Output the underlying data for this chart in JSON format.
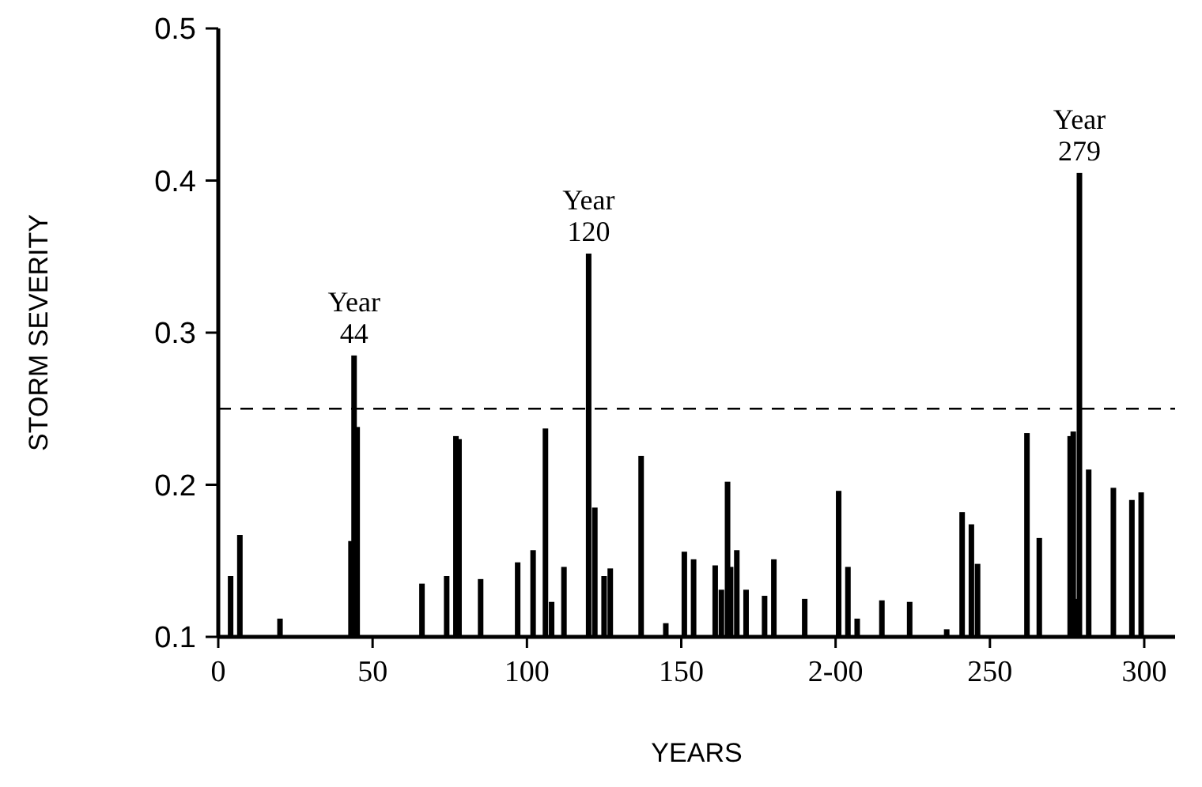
{
  "chart_data": {
    "type": "bar",
    "xlabel": "YEARS",
    "ylabel": "STORM SEVERITY",
    "x": [
      4,
      7,
      20,
      43,
      44,
      45,
      66,
      74,
      77,
      78,
      85,
      97,
      102,
      106,
      108,
      112,
      120,
      122,
      125,
      127,
      137,
      145,
      151,
      154,
      161,
      163,
      165,
      166,
      168,
      171,
      177,
      180,
      190,
      201,
      204,
      207,
      215,
      224,
      236,
      241,
      244,
      246,
      262,
      266,
      276,
      277,
      278,
      279,
      282,
      290,
      296,
      299
    ],
    "values": [
      0.14,
      0.167,
      0.112,
      0.163,
      0.285,
      0.238,
      0.135,
      0.14,
      0.232,
      0.23,
      0.138,
      0.149,
      0.157,
      0.237,
      0.123,
      0.146,
      0.352,
      0.185,
      0.14,
      0.145,
      0.219,
      0.109,
      0.156,
      0.151,
      0.147,
      0.131,
      0.202,
      0.146,
      0.157,
      0.131,
      0.127,
      0.151,
      0.125,
      0.196,
      0.146,
      0.112,
      0.124,
      0.123,
      0.105,
      0.182,
      0.174,
      0.148,
      0.234,
      0.165,
      0.232,
      0.235,
      0.125,
      0.405,
      0.21,
      0.198,
      0.19,
      0.195
    ],
    "color": "#000000",
    "xlim": [
      0,
      310
    ],
    "xticks": [
      0,
      50,
      100,
      150,
      {
        "value": 200,
        "label": "2-00"
      },
      250,
      300
    ],
    "ylim": [
      0.1,
      0.5
    ],
    "yticks": [
      0.1,
      0.2,
      0.3,
      0.4,
      0.5
    ],
    "ref_lines": [
      {
        "axis": "y",
        "value": 0.25,
        "line_style": "dashed",
        "color": "#000000"
      }
    ],
    "annotations": [
      {
        "text": "Year\n44",
        "x": 44,
        "y": 0.285
      },
      {
        "text": "Year\n120",
        "x": 120,
        "y": 0.352
      },
      {
        "text": "Year\n279",
        "x": 279,
        "y": 0.405
      }
    ],
    "grid": false
  }
}
